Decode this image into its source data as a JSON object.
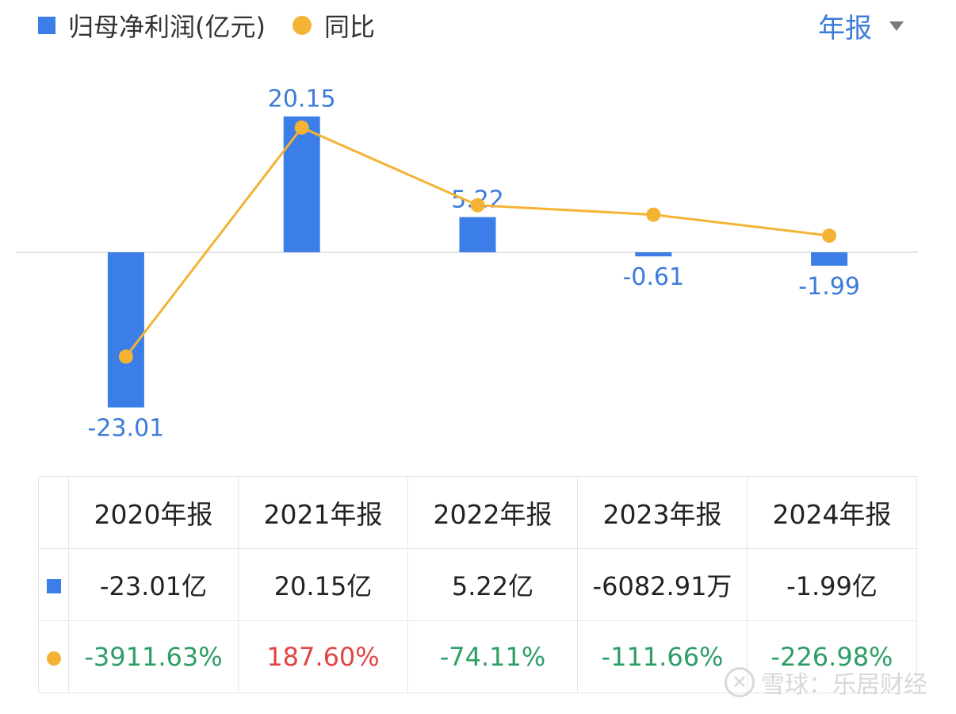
{
  "legend": {
    "series_label": "归母净利润(亿元)",
    "yoy_label": "同比"
  },
  "period_selector": {
    "label": "年报"
  },
  "colors": {
    "bar": "#3b7ee8",
    "line": "#f5b335",
    "positive": "#e24545",
    "negative": "#2e9e66",
    "bar_label": "#3d7bd9"
  },
  "chart_data": {
    "type": "bar",
    "categories": [
      "2020年报",
      "2021年报",
      "2022年报",
      "2023年报",
      "2024年报"
    ],
    "series": [
      {
        "name": "归母净利润(亿元)",
        "type": "bar",
        "values": [
          -23.01,
          20.15,
          5.22,
          -0.61,
          -1.99
        ],
        "labels": [
          "-23.01",
          "20.15",
          "5.22",
          "-0.61",
          "-1.99"
        ]
      },
      {
        "name": "同比",
        "type": "line",
        "values": [
          -3911.63,
          187.6,
          -74.11,
          -111.66,
          -226.98
        ]
      }
    ]
  },
  "table": {
    "headers": [
      "2020年报",
      "2021年报",
      "2022年报",
      "2023年报",
      "2024年报"
    ],
    "profit_row": [
      "-23.01亿",
      "20.15亿",
      "5.22亿",
      "-6082.91万",
      "-1.99亿"
    ],
    "yoy_row": [
      "-3911.63%",
      "187.60%",
      "-74.11%",
      "-111.66%",
      "-226.98%"
    ]
  },
  "watermark": {
    "text": "雪球：乐居财经",
    "icon": "xueqiu-logo-icon"
  }
}
